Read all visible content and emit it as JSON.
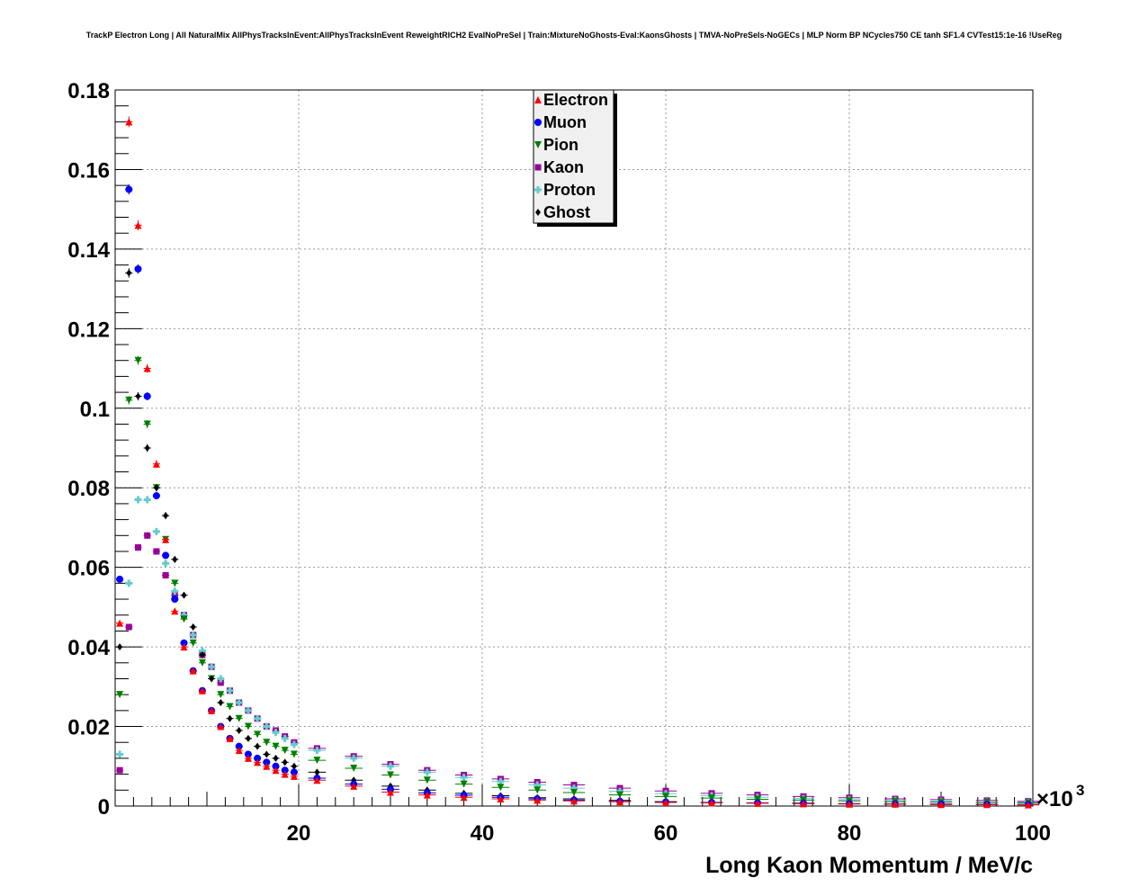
{
  "chart_data": {
    "type": "scatter",
    "title": "TrackP Electron Long | All NaturalMix AllPhysTracksInEvent:AllPhysTracksInEvent ReweightRICH2 EvalNoPreSel | Train:MixtureNoGhosts-Eval:KaonsGhosts | TMVA-NoPreSels-NoGECs | MLP Norm BP NCycles750 CE tanh SF1.4 CVTest15:1e-16 !UseReg",
    "xlabel": "Long Kaon Momentum / MeV/c",
    "ylabel": "",
    "x_multiplier": "×10",
    "x_multiplier_exp": "3",
    "xlim": [
      0,
      100
    ],
    "ylim": [
      0,
      0.18
    ],
    "x_ticks": [
      20,
      40,
      60,
      80,
      100
    ],
    "x_tick_labels": [
      "20",
      "40",
      "60",
      "80",
      "100"
    ],
    "y_ticks": [
      0,
      0.02,
      0.04,
      0.06,
      0.08,
      0.1,
      0.12,
      0.14,
      0.16,
      0.18
    ],
    "y_tick_labels": [
      "0",
      "0.02",
      "0.04",
      "0.06",
      "0.08",
      "0.1",
      "0.12",
      "0.14",
      "0.16",
      "0.18"
    ],
    "grid": true,
    "legend_position": "top-center",
    "x": [
      0.5,
      1.5,
      2.5,
      3.5,
      4.5,
      5.5,
      6.5,
      7.5,
      8.5,
      9.5,
      10.5,
      11.5,
      12.5,
      13.5,
      14.5,
      15.5,
      16.5,
      17.5,
      18.5,
      19.5,
      22,
      26,
      30,
      34,
      38,
      42,
      46,
      50,
      55,
      60,
      65,
      70,
      75,
      80,
      85,
      90,
      95,
      99.5
    ],
    "series": [
      {
        "name": "Electron",
        "color": "#ff0000",
        "marker": "triangle-up",
        "values": [
          0.046,
          0.172,
          0.146,
          0.11,
          0.086,
          0.067,
          0.049,
          0.04,
          0.034,
          0.029,
          0.024,
          0.02,
          0.017,
          0.014,
          0.012,
          0.011,
          0.01,
          0.009,
          0.008,
          0.0075,
          0.0065,
          0.005,
          0.0035,
          0.0028,
          0.0022,
          0.0018,
          0.0015,
          0.0013,
          0.0011,
          0.0009,
          0.0008,
          0.0007,
          0.0006,
          0.0005,
          0.0005,
          0.0004,
          0.0004,
          0.0003
        ]
      },
      {
        "name": "Muon",
        "color": "#0000ff",
        "marker": "circle",
        "values": [
          0.057,
          0.155,
          0.135,
          0.103,
          0.078,
          0.063,
          0.052,
          0.041,
          0.034,
          0.029,
          0.024,
          0.02,
          0.017,
          0.015,
          0.013,
          0.012,
          0.011,
          0.01,
          0.009,
          0.0085,
          0.007,
          0.0055,
          0.0042,
          0.0033,
          0.0027,
          0.0022,
          0.0018,
          0.0015,
          0.0012,
          0.001,
          0.0009,
          0.0008,
          0.0007,
          0.0006,
          0.0005,
          0.0005,
          0.0004,
          0.0004
        ]
      },
      {
        "name": "Pion",
        "color": "#008000",
        "marker": "triangle-down",
        "values": [
          0.028,
          0.102,
          0.112,
          0.096,
          0.08,
          0.067,
          0.056,
          0.047,
          0.041,
          0.036,
          0.032,
          0.028,
          0.025,
          0.022,
          0.02,
          0.018,
          0.016,
          0.015,
          0.014,
          0.013,
          0.0115,
          0.0095,
          0.0078,
          0.0065,
          0.0055,
          0.0047,
          0.004,
          0.0034,
          0.0028,
          0.0024,
          0.002,
          0.0017,
          0.0015,
          0.0013,
          0.0011,
          0.001,
          0.0009,
          0.0008
        ]
      },
      {
        "name": "Kaon",
        "color": "#990099",
        "marker": "square",
        "values": [
          0.009,
          0.045,
          0.065,
          0.068,
          0.064,
          0.058,
          0.053,
          0.048,
          0.043,
          0.038,
          0.035,
          0.031,
          0.029,
          0.026,
          0.024,
          0.022,
          0.02,
          0.019,
          0.0175,
          0.016,
          0.0145,
          0.0125,
          0.0105,
          0.009,
          0.0078,
          0.0068,
          0.006,
          0.0053,
          0.0045,
          0.0038,
          0.0032,
          0.0028,
          0.0024,
          0.0021,
          0.0018,
          0.0016,
          0.0014,
          0.0012
        ]
      },
      {
        "name": "Proton",
        "color": "#66cccc",
        "marker": "cross",
        "values": [
          0.013,
          0.056,
          0.077,
          0.077,
          0.069,
          0.061,
          0.054,
          0.048,
          0.043,
          0.039,
          0.035,
          0.032,
          0.029,
          0.026,
          0.024,
          0.022,
          0.02,
          0.0185,
          0.017,
          0.0155,
          0.014,
          0.012,
          0.01,
          0.0085,
          0.0072,
          0.0062,
          0.0053,
          0.0045,
          0.0037,
          0.0031,
          0.0026,
          0.0022,
          0.0019,
          0.0016,
          0.0014,
          0.0012,
          0.001,
          0.0009
        ]
      },
      {
        "name": "Ghost",
        "color": "#000000",
        "marker": "diamond",
        "values": [
          0.04,
          0.134,
          0.103,
          0.09,
          0.08,
          0.073,
          0.062,
          0.053,
          0.045,
          0.038,
          0.032,
          0.026,
          0.022,
          0.019,
          0.017,
          0.015,
          0.013,
          0.012,
          0.011,
          0.01,
          0.0085,
          0.0065,
          0.005,
          0.004,
          0.0032,
          0.0026,
          0.0021,
          0.0018,
          0.0014,
          0.0011,
          0.0009,
          0.0008,
          0.0007,
          0.0006,
          0.0005,
          0.0004,
          0.0004,
          0.0003
        ]
      }
    ]
  }
}
